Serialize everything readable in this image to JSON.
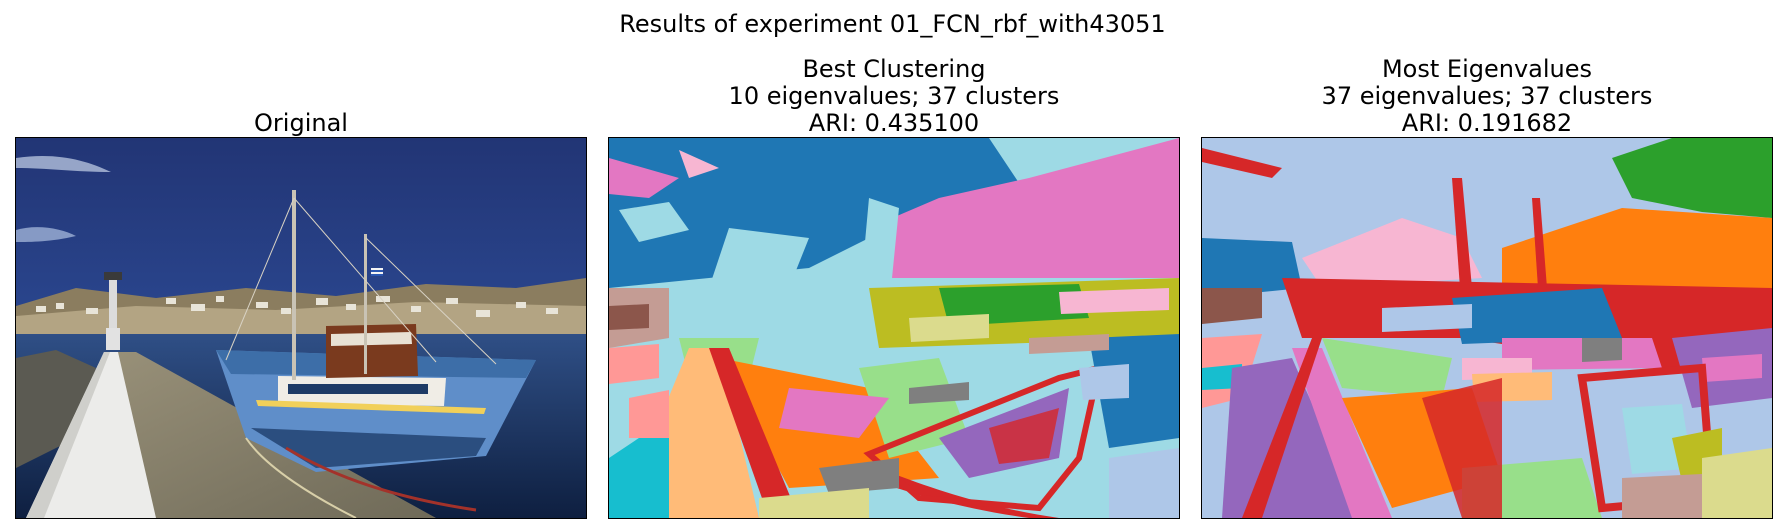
{
  "figure": {
    "title": "Results of experiment 01_FCN_rbf_with43051"
  },
  "panels": [
    {
      "title_lines": [
        "Original"
      ]
    },
    {
      "title_lines": [
        "Best Clustering",
        "10 eigenvalues; 37 clusters",
        "ARI: 0.435100"
      ]
    },
    {
      "title_lines": [
        "Most Eigenvalues",
        "37 eigenvalues; 37 clusters",
        "ARI: 0.191682"
      ]
    }
  ],
  "colors": {
    "blue": "#1f77b4",
    "orange": "#ff7f0e",
    "green": "#2ca02c",
    "red": "#d62728",
    "purple": "#9467bd",
    "brown": "#8c564b",
    "pink": "#e377c2",
    "gray": "#7f7f7f",
    "olive": "#bcbd22",
    "cyan": "#17becf",
    "light_blue": "#aec7e8",
    "light_cyan": "#9edae5",
    "light_pink": "#f7b6d2",
    "light_green": "#98df8a",
    "light_orange": "#ffbb78",
    "light_red": "#ff9896",
    "light_brown": "#c49c94",
    "light_olive": "#dbdb8d"
  }
}
